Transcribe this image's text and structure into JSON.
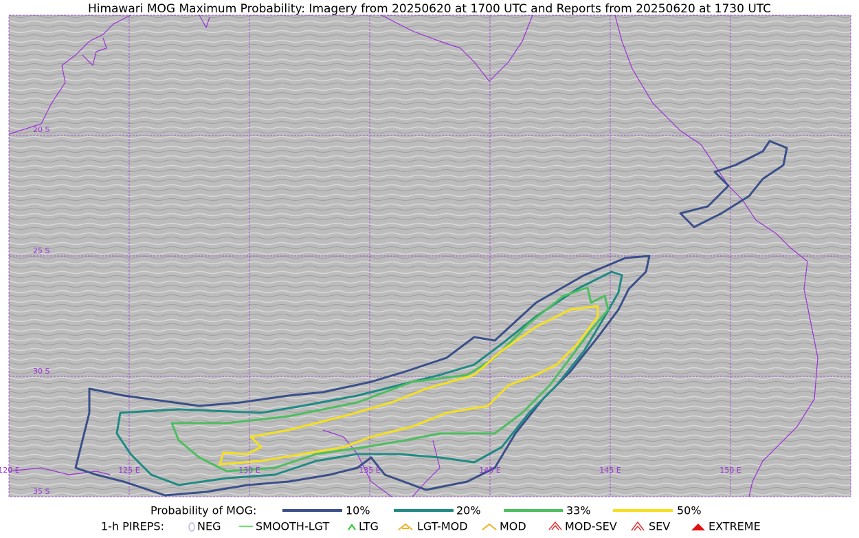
{
  "title": "Himawari MOG Maximum Probability: Imagery from 20250620 at 1700 UTC and Reports from 20250620 at 1730 UTC",
  "map": {
    "lat_labels": [
      "20 S",
      "25 S",
      "30 S",
      "35 S"
    ],
    "lon_labels": [
      "120 E",
      "125 E",
      "130 E",
      "135 E",
      "140 E",
      "145 E",
      "150 E"
    ]
  },
  "legend": {
    "probability": {
      "title": "Probability of MOG:",
      "entries": [
        "10%",
        "20%",
        "33%",
        "50%"
      ]
    },
    "pireps": {
      "title": "1-h PIREPS:",
      "entries": [
        "NEG",
        "SMOOTH-LGT",
        "LTG",
        "LGT-MOD",
        "MOD",
        "MOD-SEV",
        "SEV",
        "EXTREME"
      ]
    }
  }
}
